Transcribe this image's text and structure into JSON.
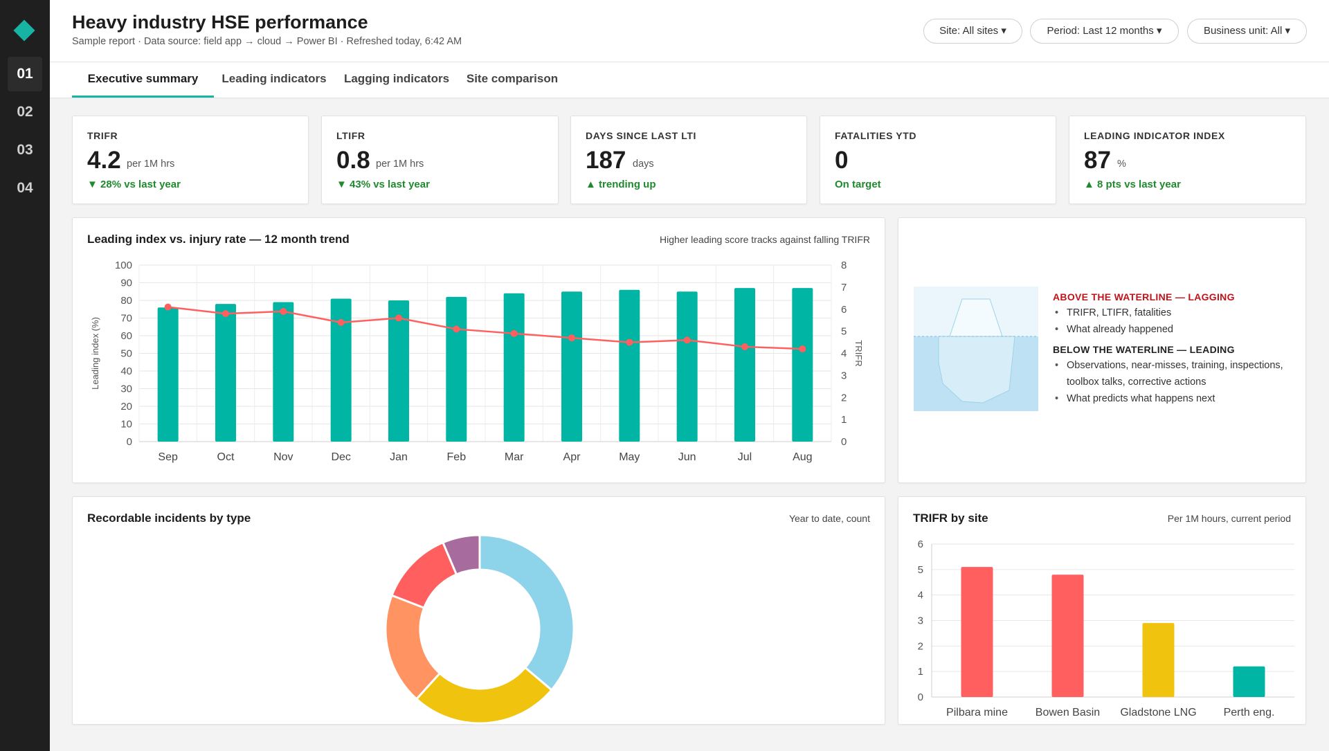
{
  "app": {
    "title": "Heavy industry HSE performance",
    "subtitle": "Sample report · Data source: field app → cloud → Power BI · Refreshed today, 6:42 AM"
  },
  "nav": {
    "items": [
      {
        "label": "01",
        "active": true
      },
      {
        "label": "02",
        "active": false
      },
      {
        "label": "03",
        "active": false
      },
      {
        "label": "04",
        "active": false
      }
    ]
  },
  "filters": {
    "site": "Site: All sites ▾",
    "period": "Period: Last 12 months ▾",
    "business_unit": "Business unit: All ▾"
  },
  "tabs": [
    {
      "label": "Executive summary",
      "active": true
    },
    {
      "label": "Leading indicators",
      "active": false
    },
    {
      "label": "Lagging indicators",
      "active": false
    },
    {
      "label": "Site comparison",
      "active": false
    }
  ],
  "kpis": [
    {
      "label": "TRIFR",
      "value": "4.2",
      "unit": "per 1M hrs",
      "change": "▼ 28% vs last year"
    },
    {
      "label": "LTIFR",
      "value": "0.8",
      "unit": "per 1M hrs",
      "change": "▼ 43% vs last year"
    },
    {
      "label": "DAYS SINCE LAST LTI",
      "value": "187",
      "unit": "days",
      "change": "▲ trending up"
    },
    {
      "label": "FATALITIES YTD",
      "value": "0",
      "unit": "",
      "change": "On target"
    },
    {
      "label": "LEADING INDICATOR INDEX",
      "value": "87",
      "unit": "%",
      "change": "▲ 8 pts vs last year"
    }
  ],
  "trend_card": {
    "title": "Leading index vs. injury rate — 12 month trend",
    "note": "Higher leading score tracks against falling TRIFR"
  },
  "iceberg": {
    "above_heading": "ABOVE THE WATERLINE — LAGGING",
    "above_items": [
      "TRIFR, LTIFR, fatalities",
      "What already happened"
    ],
    "below_heading": "BELOW THE WATERLINE — LEADING",
    "below_items": [
      "Observations, near-misses, training, inspections, toolbox talks, corrective actions",
      "What predicts what happens next"
    ]
  },
  "incidents_card": {
    "title": "Recordable incidents by type",
    "note": "Year to date, count"
  },
  "site_card": {
    "title": "TRIFR by site",
    "note": "Per 1M hours, current period"
  },
  "colors": {
    "accent": "#17b3a3",
    "teal": "#00b5a3",
    "red": "#ff5f5f",
    "yellow": "#f0c30f",
    "positive": "#1f8a2d",
    "lagging": "#c0131b"
  },
  "chart_data": [
    {
      "type": "bar",
      "categories": [
        "Sep",
        "Oct",
        "Nov",
        "Dec",
        "Jan",
        "Feb",
        "Mar",
        "Apr",
        "May",
        "Jun",
        "Jul",
        "Aug"
      ],
      "series": [
        {
          "axis": "left",
          "type": "bar",
          "values": [
            76,
            78,
            79,
            81,
            80,
            82,
            84,
            85,
            86,
            85,
            87,
            87
          ]
        },
        {
          "axis": "right",
          "type": "line",
          "values": [
            6.1,
            5.8,
            5.9,
            5.4,
            5.6,
            5.1,
            4.9,
            4.7,
            4.5,
            4.6,
            4.3,
            4.2
          ]
        }
      ],
      "ylabel": "Leading index (%)",
      "y2label": "TRIFR",
      "ylim": [
        0,
        100
      ],
      "y2lim": [
        0,
        8
      ],
      "yticks": [
        0,
        10,
        20,
        30,
        40,
        50,
        60,
        70,
        80,
        90,
        100
      ],
      "y2ticks": [
        0,
        1,
        2,
        3,
        4,
        5,
        6,
        7,
        8
      ],
      "grid": true
    },
    {
      "type": "pie",
      "donut": true,
      "values": [
        34,
        24,
        18,
        12,
        6
      ],
      "colors": [
        "#8dd3ea",
        "#f0c30f",
        "#ff9362",
        "#ff5f5f",
        "#a86b9e"
      ]
    },
    {
      "type": "bar",
      "categories": [
        "Pilbara mine",
        "Bowen Basin",
        "Gladstone LNG",
        "Perth eng."
      ],
      "values": [
        5.1,
        4.8,
        2.9,
        1.2
      ],
      "colors": [
        "#ff5f5f",
        "#ff5f5f",
        "#f0c30f",
        "#00b5a3"
      ],
      "ylim": [
        0,
        6
      ],
      "yticks": [
        0,
        1,
        2,
        3,
        4,
        5,
        6
      ],
      "grid": true
    }
  ]
}
